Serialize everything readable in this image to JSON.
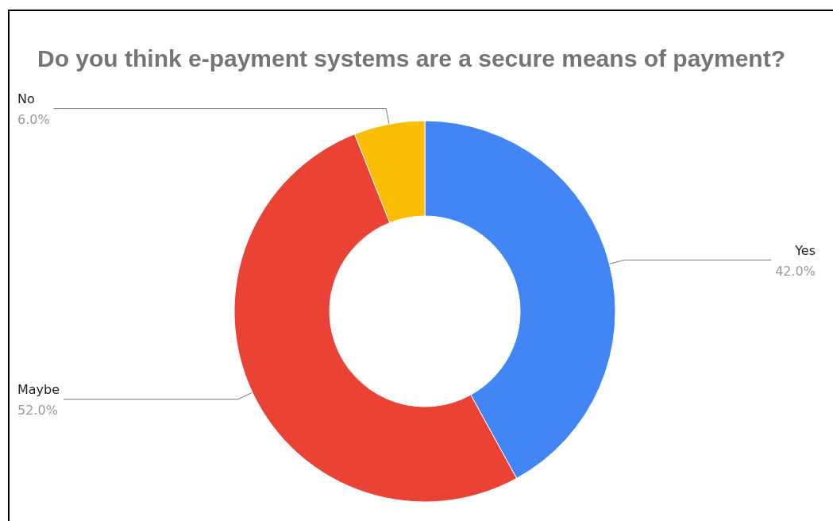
{
  "chart_data": {
    "type": "donut",
    "title": "Do you think e-payment systems are a secure means of payment?",
    "categories": [
      "Yes",
      "Maybe",
      "No"
    ],
    "values": [
      42,
      52,
      6
    ],
    "colors": [
      "#4285f4",
      "#ea4335",
      "#fbbc04"
    ],
    "value_labels": [
      "42.0%",
      "52.0%",
      "6.0%"
    ],
    "legend": false
  }
}
